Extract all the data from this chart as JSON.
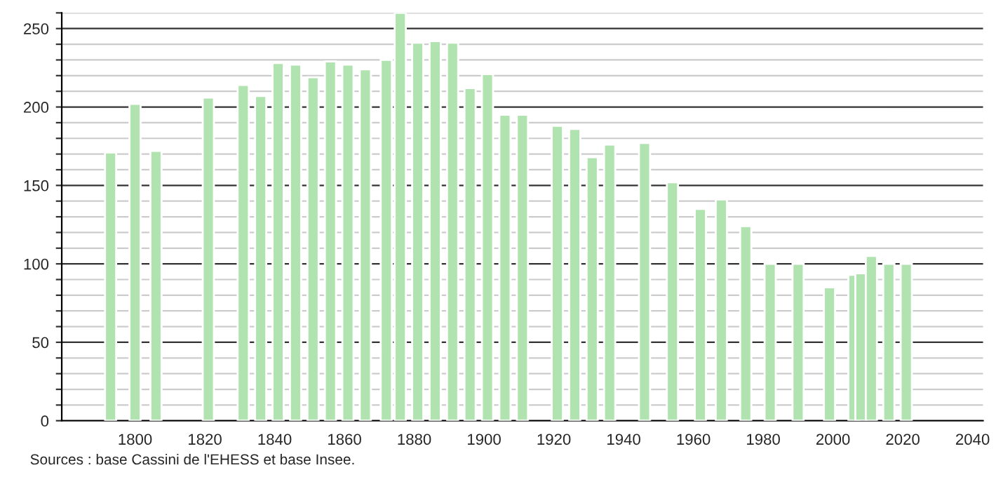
{
  "chart_data": {
    "type": "bar",
    "x": [
      1793,
      1800,
      1806,
      1821,
      1831,
      1836,
      1841,
      1846,
      1851,
      1856,
      1861,
      1866,
      1872,
      1876,
      1881,
      1886,
      1891,
      1896,
      1901,
      1906,
      1911,
      1921,
      1926,
      1931,
      1936,
      1946,
      1954,
      1962,
      1968,
      1975,
      1982,
      1990,
      1999,
      2006,
      2008,
      2011,
      2016,
      2021
    ],
    "values": [
      171,
      202,
      172,
      206,
      214,
      207,
      228,
      227,
      219,
      229,
      227,
      224,
      230,
      260,
      241,
      242,
      241,
      212,
      221,
      195,
      195,
      188,
      186,
      168,
      176,
      177,
      152,
      135,
      141,
      124,
      100,
      100,
      85,
      93,
      94,
      105,
      100,
      100
    ],
    "color": "#b0e3b0",
    "xlim": [
      1779,
      2043
    ],
    "xticks": [
      1800,
      1820,
      1840,
      1860,
      1880,
      1900,
      1920,
      1940,
      1960,
      1980,
      2000,
      2020,
      2040
    ],
    "ylim": [
      0,
      260
    ],
    "yticks": [
      0,
      {
        "value": 10,
        "label": null
      },
      {
        "value": 20,
        "label": null
      },
      {
        "value": 30,
        "label": null
      },
      {
        "value": 40,
        "label": null
      },
      50,
      {
        "value": 60,
        "label": null
      },
      {
        "value": 70,
        "label": null
      },
      {
        "value": 80,
        "label": null
      },
      {
        "value": 90,
        "label": null
      },
      100,
      {
        "value": 110,
        "label": null
      },
      {
        "value": 120,
        "label": null
      },
      {
        "value": 130,
        "label": null
      },
      {
        "value": 140,
        "label": null
      },
      150,
      {
        "value": 160,
        "label": null
      },
      {
        "value": 170,
        "label": null
      },
      {
        "value": 180,
        "label": null
      },
      {
        "value": 190,
        "label": null
      },
      200,
      {
        "value": 210,
        "label": null
      },
      {
        "value": 220,
        "label": null
      },
      {
        "value": 230,
        "label": null
      },
      {
        "value": 240,
        "label": null
      },
      250,
      {
        "value": 260,
        "label": null
      }
    ],
    "grid": "y",
    "annotations": [
      "Sources : base Cassini de l'EHESS et base Insee."
    ]
  }
}
